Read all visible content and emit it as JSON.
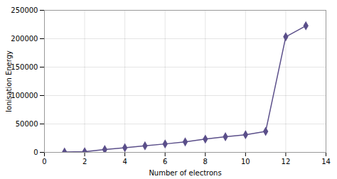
{
  "chart_data": {
    "type": "line",
    "x": [
      1,
      2,
      3,
      4,
      5,
      6,
      7,
      8,
      9,
      10,
      11,
      12,
      13
    ],
    "values": [
      590,
      1145,
      4912,
      8144,
      11565,
      14842,
      18379,
      23294,
      27462,
      31048,
      36819,
      203390,
      222760
    ],
    "color": "#5b4f8a",
    "marker": "diamond",
    "xlabel": "Number of electrons",
    "ylabel": "Ionisation Energy",
    "xlim": [
      0,
      14
    ],
    "ylim": [
      0,
      250000
    ],
    "xticks": [
      0,
      2,
      4,
      6,
      8,
      10,
      12,
      14
    ],
    "yticks": [
      0,
      50000,
      100000,
      150000,
      200000,
      250000
    ],
    "grid": true
  }
}
